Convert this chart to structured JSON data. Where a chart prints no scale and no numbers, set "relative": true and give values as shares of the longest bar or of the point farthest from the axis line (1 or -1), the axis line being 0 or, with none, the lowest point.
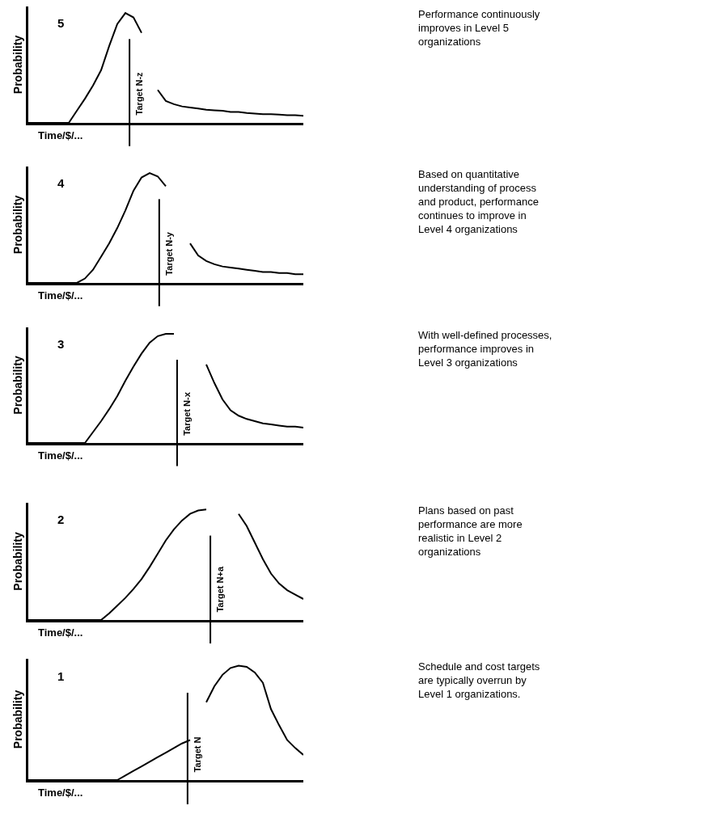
{
  "chart_data": [
    {
      "type": "line",
      "relative": true,
      "xlabel": "Time/$/...",
      "ylabel": "Probability",
      "categories": [
        null,
        null,
        null,
        null,
        null,
        null,
        null,
        null,
        null,
        null,
        null,
        null,
        null,
        null,
        null,
        null,
        null,
        null,
        null,
        null,
        null,
        null,
        null,
        null,
        null,
        null,
        null,
        null,
        null,
        null,
        null,
        null,
        null,
        null,
        null
      ],
      "series": [
        {
          "color": "#000000",
          "values": [
            0,
            0,
            0,
            0,
            0,
            0,
            0.11,
            0.22,
            0.34,
            0.48,
            0.7,
            0.9,
            1.0,
            0.96,
            0.82,
            null,
            null,
            null,
            null,
            null,
            null,
            null,
            null,
            null,
            null,
            null,
            null,
            null,
            null,
            null,
            null,
            null,
            null,
            null,
            null
          ]
        },
        {
          "color": "#000000",
          "values": [
            null,
            null,
            null,
            null,
            null,
            null,
            null,
            null,
            null,
            null,
            null,
            null,
            null,
            null,
            null,
            null,
            0.3,
            0.2,
            0.17,
            0.15,
            0.14,
            0.13,
            0.12,
            0.115,
            0.11,
            0.1,
            0.1,
            0.09,
            0.085,
            0.08,
            0.08,
            0.075,
            0.07,
            0.07,
            0.065
          ]
        }
      ],
      "annotations": [
        "5",
        "Performance continuously\nimproves in Level 5\norganizations",
        "Target N-z"
      ]
    },
    {
      "type": "line",
      "relative": true,
      "xlabel": "Time/$/...",
      "ylabel": "Probability",
      "categories": [
        null,
        null,
        null,
        null,
        null,
        null,
        null,
        null,
        null,
        null,
        null,
        null,
        null,
        null,
        null,
        null,
        null,
        null,
        null,
        null,
        null,
        null,
        null,
        null,
        null,
        null,
        null,
        null,
        null,
        null,
        null,
        null,
        null,
        null,
        null
      ],
      "series": [
        {
          "color": "#000000",
          "values": [
            0,
            0,
            0,
            0,
            0,
            0,
            0,
            0.04,
            0.12,
            0.24,
            0.36,
            0.5,
            0.66,
            0.84,
            0.96,
            1.0,
            0.97,
            0.88,
            null,
            null,
            null,
            null,
            null,
            null,
            null,
            null,
            null,
            null,
            null,
            null,
            null,
            null,
            null,
            null,
            null
          ]
        },
        {
          "color": "#000000",
          "values": [
            null,
            null,
            null,
            null,
            null,
            null,
            null,
            null,
            null,
            null,
            null,
            null,
            null,
            null,
            null,
            null,
            null,
            null,
            null,
            null,
            0.36,
            0.25,
            0.2,
            0.17,
            0.15,
            0.14,
            0.13,
            0.12,
            0.11,
            0.1,
            0.1,
            0.09,
            0.09,
            0.08,
            0.08
          ]
        }
      ],
      "annotations": [
        "4",
        "Based on quantitative\nunderstanding of process\nand product, performance\ncontinues to improve in\nLevel 4 organizations",
        "Target N-y"
      ]
    },
    {
      "type": "line",
      "relative": true,
      "xlabel": "Time/$/...",
      "ylabel": "Probability",
      "categories": [
        null,
        null,
        null,
        null,
        null,
        null,
        null,
        null,
        null,
        null,
        null,
        null,
        null,
        null,
        null,
        null,
        null,
        null,
        null,
        null,
        null,
        null,
        null,
        null,
        null,
        null,
        null,
        null,
        null,
        null,
        null,
        null,
        null,
        null,
        null
      ],
      "series": [
        {
          "color": "#000000",
          "values": [
            0,
            0,
            0,
            0,
            0,
            0,
            0,
            0,
            0.1,
            0.2,
            0.31,
            0.43,
            0.57,
            0.7,
            0.82,
            0.92,
            0.98,
            1.0,
            1.0,
            null,
            null,
            null,
            null,
            null,
            null,
            null,
            null,
            null,
            null,
            null,
            null,
            null,
            null,
            null,
            null
          ]
        },
        {
          "color": "#000000",
          "values": [
            null,
            null,
            null,
            null,
            null,
            null,
            null,
            null,
            null,
            null,
            null,
            null,
            null,
            null,
            null,
            null,
            null,
            null,
            null,
            null,
            null,
            null,
            0.72,
            0.55,
            0.4,
            0.3,
            0.25,
            0.22,
            0.2,
            0.18,
            0.17,
            0.16,
            0.15,
            0.15,
            0.14
          ]
        }
      ],
      "annotations": [
        "3",
        "With well-defined processes,\nperformance improves in\nLevel 3 organizations",
        "Target N-x"
      ]
    },
    {
      "type": "line",
      "relative": true,
      "xlabel": "Time/$/...",
      "ylabel": "Probability",
      "categories": [
        null,
        null,
        null,
        null,
        null,
        null,
        null,
        null,
        null,
        null,
        null,
        null,
        null,
        null,
        null,
        null,
        null,
        null,
        null,
        null,
        null,
        null,
        null,
        null,
        null,
        null,
        null,
        null,
        null,
        null,
        null,
        null,
        null,
        null,
        null
      ],
      "series": [
        {
          "color": "#000000",
          "values": [
            0,
            0,
            0,
            0,
            0,
            0,
            0,
            0,
            0,
            0,
            0.06,
            0.13,
            0.2,
            0.28,
            0.37,
            0.48,
            0.6,
            0.72,
            0.82,
            0.9,
            0.96,
            0.99,
            1.0,
            null,
            null,
            null,
            null,
            null,
            null,
            null,
            null,
            null,
            null,
            null,
            null
          ]
        },
        {
          "color": "#000000",
          "values": [
            null,
            null,
            null,
            null,
            null,
            null,
            null,
            null,
            null,
            null,
            null,
            null,
            null,
            null,
            null,
            null,
            null,
            null,
            null,
            null,
            null,
            null,
            null,
            null,
            null,
            null,
            0.96,
            0.85,
            0.7,
            0.55,
            0.42,
            0.33,
            0.27,
            0.23,
            0.19
          ]
        }
      ],
      "annotations": [
        "2",
        "Plans based on past\nperformance are more\nrealistic in Level 2\norganizations",
        "Target N+a"
      ]
    },
    {
      "type": "line",
      "relative": true,
      "xlabel": "Time/$/...",
      "ylabel": "Probability",
      "categories": [
        null,
        null,
        null,
        null,
        null,
        null,
        null,
        null,
        null,
        null,
        null,
        null,
        null,
        null,
        null,
        null,
        null,
        null,
        null,
        null,
        null,
        null,
        null,
        null,
        null,
        null,
        null,
        null,
        null,
        null,
        null,
        null,
        null,
        null,
        null
      ],
      "series": [
        {
          "color": "#000000",
          "values": [
            0,
            0,
            0,
            0,
            0,
            0,
            0,
            0,
            0,
            0,
            0,
            0,
            0.04,
            0.08,
            0.12,
            0.16,
            0.2,
            0.24,
            0.28,
            0.32,
            0.35,
            null,
            null,
            null,
            null,
            null,
            null,
            null,
            null,
            null,
            null,
            null,
            null,
            null,
            null
          ]
        },
        {
          "color": "#000000",
          "values": [
            null,
            null,
            null,
            null,
            null,
            null,
            null,
            null,
            null,
            null,
            null,
            null,
            null,
            null,
            null,
            null,
            null,
            null,
            null,
            null,
            null,
            null,
            0.68,
            0.82,
            0.92,
            0.98,
            1.0,
            0.99,
            0.94,
            0.85,
            0.62,
            0.48,
            0.35,
            0.28,
            0.22
          ]
        }
      ],
      "annotations": [
        "1",
        "Schedule and cost targets\nare typically overrun by\nLevel 1 organizations.",
        "Target N"
      ]
    }
  ]
}
